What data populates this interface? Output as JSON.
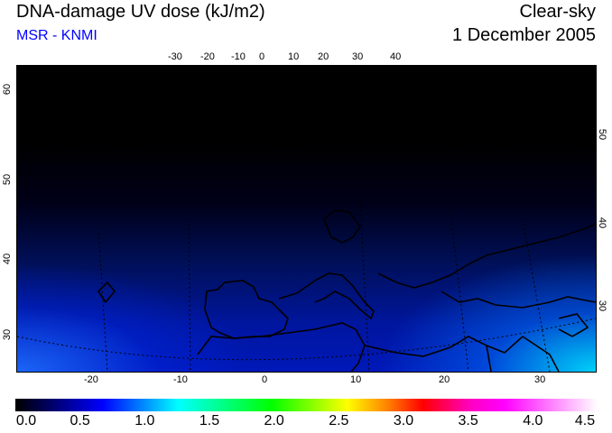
{
  "header": {
    "title": "DNA-damage UV dose (kJ/m2)",
    "source": "MSR - KNMI",
    "condition": "Clear-sky",
    "date": "1 December 2005"
  },
  "axes": {
    "top_lon": [
      "-30",
      "-20",
      "-10",
      "0",
      "10",
      "20",
      "30",
      "40"
    ],
    "bottom_lon": [
      "-20",
      "-10",
      "0",
      "10",
      "20",
      "30"
    ],
    "left_lat": [
      "60",
      "50",
      "40",
      "30"
    ],
    "right_lat": [
      "50",
      "40",
      "30"
    ]
  },
  "colorbar": {
    "labels": [
      "0.0",
      "0.5",
      "1.0",
      "1.5",
      "2.0",
      "2.5",
      "3.0",
      "3.5",
      "4.0",
      "4.5"
    ],
    "min": 0,
    "max": 4.5,
    "colors": [
      "#000000",
      "#0000ff",
      "#00ffff",
      "#00ff00",
      "#ffff00",
      "#ff0000",
      "#ff00ff",
      "#ffffff"
    ]
  }
}
